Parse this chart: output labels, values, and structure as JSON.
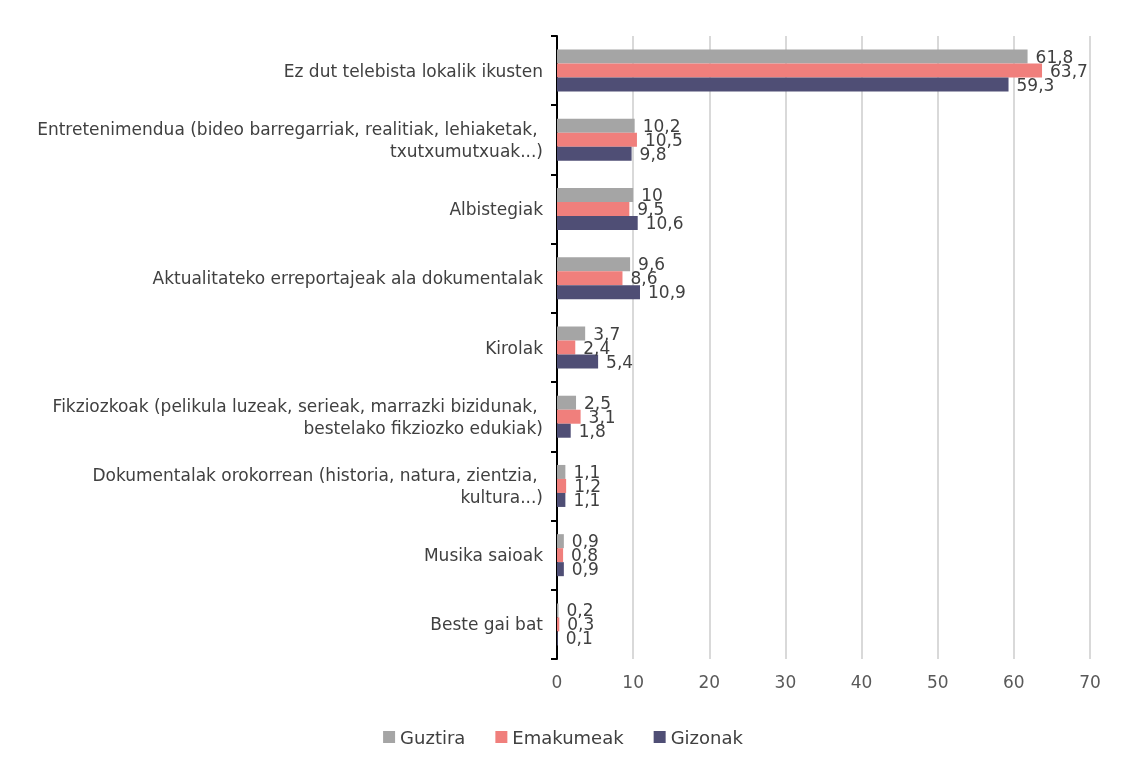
{
  "chart_data": {
    "type": "bar",
    "orientation": "horizontal",
    "categories": [
      "Ez dut telebista lokalik ikusten",
      "Entretenimendua (bideo barregarriak, realitiak, lehiaketak, txutxumutxuak...)",
      "Albistegiak",
      "Aktualitateko erreportajeak ala dokumentalak",
      "Kirolak",
      "Fikziozkoak (pelikula luzeak, serieak, marrazki bizidunak, bestelako fikziozko edukiak)",
      "Dokumentalak orokorrean (historia, natura, zientzia, kultura...)",
      "Musika saioak",
      "Beste gai bat"
    ],
    "series": [
      {
        "name": "Guztira",
        "color": "#a5a5a5",
        "values": [
          61.8,
          10.2,
          10,
          9.6,
          3.7,
          2.5,
          1.1,
          0.9,
          0.2
        ],
        "value_labels": [
          "61,8",
          "10,2",
          "10",
          "9,6",
          "3,7",
          "2,5",
          "1,1",
          "0,9",
          "0,2"
        ]
      },
      {
        "name": "Emakumeak",
        "color": "#f07f7c",
        "values": [
          63.7,
          10.5,
          9.5,
          8.6,
          2.4,
          3.1,
          1.2,
          0.8,
          0.3
        ],
        "value_labels": [
          "63,7",
          "10,5",
          "9,5",
          "8,6",
          "2,4",
          "3,1",
          "1,2",
          "0,8",
          "0,3"
        ]
      },
      {
        "name": "Gizonak",
        "color": "#4f4e75",
        "values": [
          59.3,
          9.8,
          10.6,
          10.9,
          5.4,
          1.8,
          1.1,
          0.9,
          0.1
        ],
        "value_labels": [
          "59,3",
          "9,8",
          "10,6",
          "10,9",
          "5,4",
          "1,8",
          "1,1",
          "0,9",
          "0,1"
        ]
      }
    ],
    "xlim": [
      0,
      70
    ],
    "xticks": [
      0,
      10,
      20,
      30,
      40,
      50,
      60,
      70
    ],
    "grid": "x",
    "legend": "bottom"
  }
}
